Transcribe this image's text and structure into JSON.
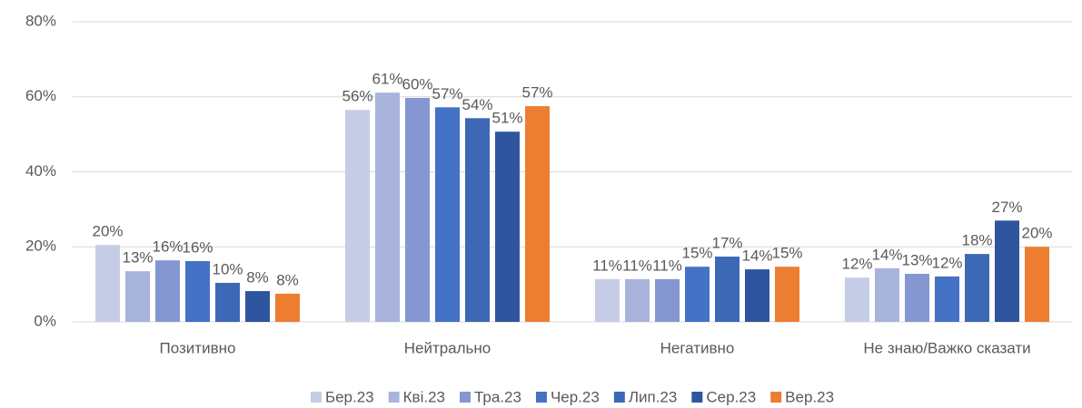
{
  "chart_data": {
    "type": "bar",
    "categories": [
      "Позитивно",
      "Нейтрально",
      "Негативно",
      "Не знаю/Важко сказати"
    ],
    "series": [
      {
        "name": "Бер.23",
        "color": "#c5cde6",
        "values": [
          20.5,
          56.5,
          11.4,
          11.8
        ],
        "value_labels": [
          "20%",
          "56%",
          "11%",
          "12%"
        ]
      },
      {
        "name": "Кві.23",
        "color": "#a8b4dc",
        "values": [
          13.5,
          61.1,
          11.4,
          14.3
        ],
        "value_labels": [
          "13%",
          "61%",
          "11%",
          "14%"
        ]
      },
      {
        "name": "Тра.23",
        "color": "#8497d0",
        "values": [
          16.4,
          59.7,
          11.4,
          12.8
        ],
        "value_labels": [
          "16%",
          "60%",
          "11%",
          "13%"
        ]
      },
      {
        "name": "Чер.23",
        "color": "#4472c4",
        "values": [
          16.2,
          57.2,
          14.7,
          12.1
        ],
        "value_labels": [
          "16%",
          "57%",
          "15%",
          "12%"
        ]
      },
      {
        "name": "Лип.23",
        "color": "#3d68b6",
        "values": [
          10.4,
          54.3,
          17.4,
          18.1
        ],
        "value_labels": [
          "10%",
          "54%",
          "17%",
          "18%"
        ]
      },
      {
        "name": "Сер.23",
        "color": "#2f559e",
        "values": [
          8.2,
          50.7,
          14.0,
          27.0
        ],
        "value_labels": [
          "8%",
          "51%",
          "14%",
          "27%"
        ]
      },
      {
        "name": "Вер.23",
        "color": "#ed7d31",
        "values": [
          7.5,
          57.5,
          14.7,
          20.0
        ],
        "value_labels": [
          "8%",
          "57%",
          "15%",
          "20%"
        ]
      }
    ],
    "ylim": [
      0,
      80
    ],
    "yticks": [
      {
        "value": 0,
        "label": "0%"
      },
      {
        "value": 20,
        "label": "20%"
      },
      {
        "value": 40,
        "label": "40%"
      },
      {
        "value": 60,
        "label": "60%"
      },
      {
        "value": 80,
        "label": "80%"
      }
    ],
    "grid": true,
    "legend": "bottom"
  }
}
